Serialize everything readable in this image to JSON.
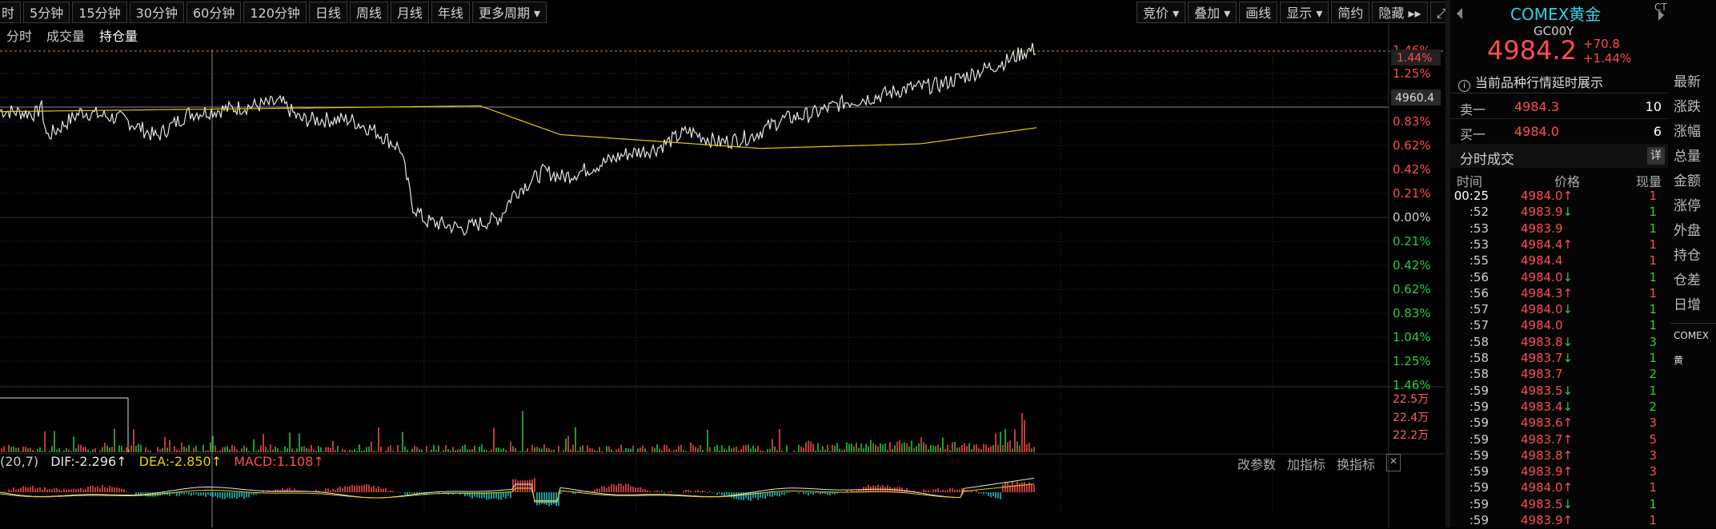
{
  "toolbar": {
    "periods": [
      "时",
      "5分钟",
      "15分钟",
      "30分钟",
      "60分钟",
      "120分钟",
      "日线",
      "周线",
      "月线",
      "年线",
      "更多周期 ▾"
    ],
    "right_tools": [
      "竞价 ▾",
      "叠加 ▾",
      "画线",
      "显示 ▾",
      "简约",
      "隐藏 ▸▸",
      "⤢"
    ]
  },
  "subtabs": [
    "分时",
    "成交量",
    "持仓量"
  ],
  "axis_right_labels": [
    "1.46%",
    "1.25%",
    "4960.4",
    "0.83%",
    "0.62%",
    "0.42%",
    "0.21%",
    "0.00%",
    "0.21%",
    "0.42%",
    "0.62%",
    "0.83%",
    "1.04%",
    "1.25%",
    "1.46%"
  ],
  "current_pct_badge": "1.44%",
  "volume_axis": [
    "22.5万",
    "22.4万",
    "22.2万"
  ],
  "macd": {
    "params": "(20,7)",
    "dif": "DIF:-2.296↑",
    "dea": "DEA:-2.850↑",
    "macd": "MACD:1.108↑",
    "tools": [
      "改参数",
      "加指标",
      "换指标",
      "✕"
    ]
  },
  "chart_data": {
    "type": "line",
    "y_axis": "percent change",
    "ylim": [
      -1.46,
      1.46
    ],
    "last_price": 4984.2,
    "last_change_pct": 1.44
  },
  "quote": {
    "title": "COMEX黄金",
    "code": "GC00Y",
    "price": "4984.2",
    "change": "+70.8",
    "change_pct": "+1.44%",
    "ct": "CT"
  },
  "notice": "当前品种行情延时展示",
  "orderbook": [
    {
      "label": "卖一",
      "price": "4984.3",
      "vol": "10"
    },
    {
      "label": "买一",
      "price": "4984.0",
      "vol": "6"
    }
  ],
  "trades_header": "分时成交",
  "trades_detail": "详",
  "trade_cols": [
    "时间",
    "价格",
    "现量"
  ],
  "trades": [
    {
      "t": "00:25",
      "p": "4984.0",
      "a": "↑",
      "q": "1",
      "dir": "up"
    },
    {
      "t": ":52",
      "p": "4983.9",
      "a": "↓",
      "q": "1",
      "dir": "dn"
    },
    {
      "t": ":53",
      "p": "4983.9",
      "a": "",
      "q": "1",
      "dir": "dn"
    },
    {
      "t": ":53",
      "p": "4984.4",
      "a": "↑",
      "q": "1",
      "dir": "up"
    },
    {
      "t": ":55",
      "p": "4984.4",
      "a": "",
      "q": "1",
      "dir": "up"
    },
    {
      "t": ":56",
      "p": "4984.0",
      "a": "↓",
      "q": "1",
      "dir": "dn"
    },
    {
      "t": ":56",
      "p": "4984.3",
      "a": "↑",
      "q": "1",
      "dir": "up"
    },
    {
      "t": ":57",
      "p": "4984.0",
      "a": "↓",
      "q": "1",
      "dir": "dn"
    },
    {
      "t": ":57",
      "p": "4984.0",
      "a": "",
      "q": "1",
      "dir": "dn"
    },
    {
      "t": ":58",
      "p": "4983.8",
      "a": "↓",
      "q": "3",
      "dir": "dn"
    },
    {
      "t": ":58",
      "p": "4983.7",
      "a": "↓",
      "q": "1",
      "dir": "dn"
    },
    {
      "t": ":58",
      "p": "4983.7",
      "a": "",
      "q": "2",
      "dir": "dn"
    },
    {
      "t": ":59",
      "p": "4983.5",
      "a": "↓",
      "q": "1",
      "dir": "dn"
    },
    {
      "t": ":59",
      "p": "4983.4",
      "a": "↓",
      "q": "2",
      "dir": "dn"
    },
    {
      "t": ":59",
      "p": "4983.6",
      "a": "↑",
      "q": "3",
      "dir": "up"
    },
    {
      "t": ":59",
      "p": "4983.7",
      "a": "↑",
      "q": "5",
      "dir": "up"
    },
    {
      "t": ":59",
      "p": "4983.8",
      "a": "↑",
      "q": "3",
      "dir": "up"
    },
    {
      "t": ":59",
      "p": "4983.9",
      "a": "↑",
      "q": "3",
      "dir": "up"
    },
    {
      "t": ":59",
      "p": "4984.0",
      "a": "↑",
      "q": "1",
      "dir": "up"
    },
    {
      "t": ":59",
      "p": "4983.5",
      "a": "↓",
      "q": "1",
      "dir": "dn"
    },
    {
      "t": ":59",
      "p": "4983.9",
      "a": "↑",
      "q": "1",
      "dir": "up"
    }
  ],
  "sidebar": [
    "最新",
    "涨跌",
    "涨幅",
    "总量",
    "金额",
    "涨停",
    "外盘",
    "持仓",
    "仓差",
    "日增",
    "COMEX黄"
  ],
  "colors": {
    "up": "#ff4d4d",
    "down": "#2ecc40",
    "price_line": "#e6e6e6",
    "avg_line": "#d8d000",
    "accent": "#36d0e3"
  }
}
